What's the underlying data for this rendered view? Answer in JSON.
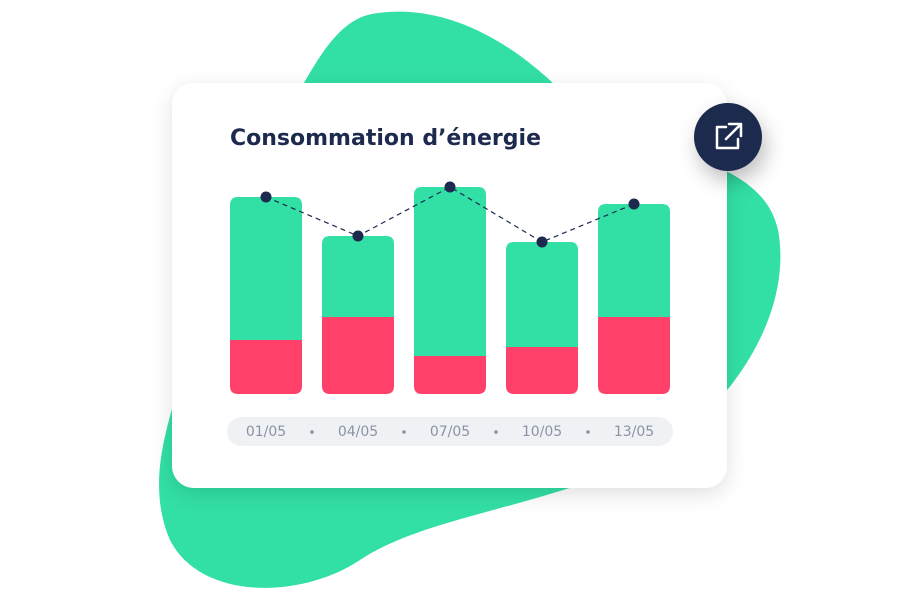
{
  "chart_data": {
    "type": "bar",
    "stacked": true,
    "title": "Consommation d’énergie",
    "categories": [
      "01/05",
      "04/05",
      "07/05",
      "10/05",
      "13/05"
    ],
    "ylim": [
      0,
      220
    ],
    "series": [
      {
        "color": "#ff4068",
        "values": [
          54,
          77,
          38,
          47,
          77
        ]
      },
      {
        "color": "#32dfa5",
        "values": [
          143,
          81,
          169,
          105,
          113
        ]
      },
      {
        "type": "line",
        "color": "#1d2a4e",
        "values": [
          197,
          158,
          207,
          152,
          190
        ]
      }
    ]
  }
}
